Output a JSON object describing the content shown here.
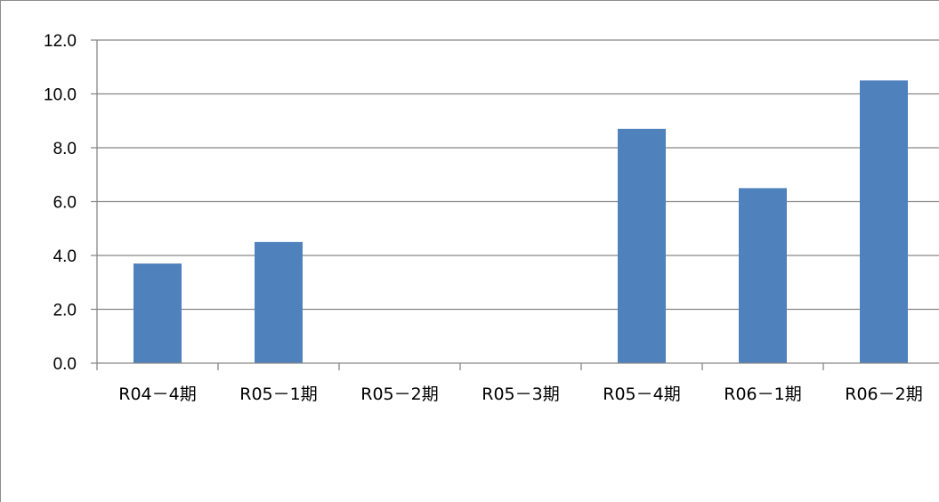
{
  "chart_data": {
    "type": "bar",
    "categories": [
      "R04－4期",
      "R05－1期",
      "R05－2期",
      "R05－3期",
      "R05－4期",
      "R06－1期",
      "R06－2期"
    ],
    "values": [
      3.7,
      4.5,
      0,
      0,
      8.7,
      6.5,
      10.5
    ],
    "yticks": [
      "0.0",
      "2.0",
      "4.0",
      "6.0",
      "8.0",
      "10.0",
      "12.0"
    ],
    "ylim": [
      0,
      12
    ],
    "grid": true,
    "bar_color": "#4F81BD",
    "grid_color": "#868686"
  }
}
